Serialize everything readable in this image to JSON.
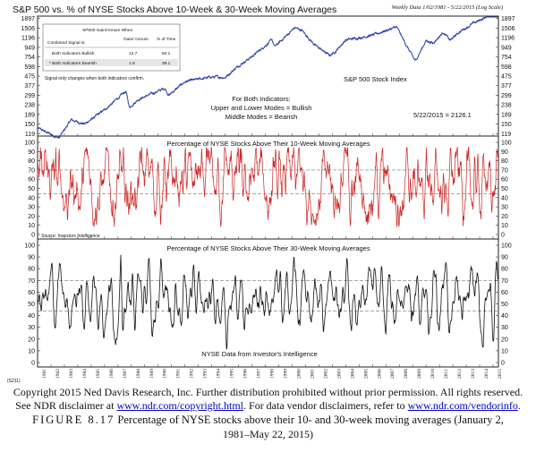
{
  "header": {
    "title": "S&P 500 vs. % of NYSE Stocks Above 10-Week & 30-Week Moving Averages",
    "subtitle": "Weekly Data 1/02/1981 - 5/22/2015 (Log Scale)"
  },
  "top_panel": {
    "series_label": "S&P 500 Stock Index",
    "modes_line1": "For Both Indicators:",
    "modes_line2": "Upper and Lower Modes = Bullish",
    "modes_line3": "Middle Modes = Bearish",
    "last_value": "5/22/2015 = 2126.1",
    "note": "Signal only changes when both indicators confirm.",
    "table": {
      "headers": [
        "SP500 Gain/Annum When",
        "",
        "Gain/ Annum",
        "% of Time"
      ],
      "header_caption": "SP500 Gain/Annum When",
      "col1": "Combined Signal is:",
      "col2": "Gain/ Annum",
      "col3": "% of Time",
      "rows": [
        {
          "label": "Both Indicators Bullish",
          "gain": "12.7",
          "time": "60.1"
        },
        {
          "label": "* Both Indicators Bearish",
          "gain": "1.8",
          "time": "39.1"
        }
      ]
    }
  },
  "mid_panel": {
    "title": "Percentage of NYSE Stocks Above Their 10-Week Moving Averages",
    "source": "Source: Investors Intelligence"
  },
  "bot_panel": {
    "title": "Percentage of NYSE Stocks Above Their 30-Week Moving Averages",
    "note": "NYSE Data from Investor's Intelligence"
  },
  "footer_code": "(S211)",
  "caption": {
    "line1": "Copyright 2015 Ned Davis Research, Inc. Further distribution prohibited without prior permission. All rights reserved.",
    "line2a": "See NDR disclaimer at",
    "link1": "www.ndr.com/copyright.html",
    "line2b": ". For data vendor disclaimers, refer to",
    "link2": "www.ndr.com/vendorinfo",
    "line2c": ".",
    "figure_label": "FIGURE 8.17",
    "line3": "Percentage of NYSE stocks above their 10- and 30-week moving averages (January 2,",
    "line4": "1981–May 22, 2015)"
  },
  "colors": {
    "sp500": "#2b3fa8",
    "pct10": "#cc2222",
    "pct30": "#111111",
    "frame": "#222222",
    "grid": "#bbbbbb"
  },
  "chart_data": [
    {
      "type": "line",
      "name": "S&P 500 Stock Index",
      "scale": "log",
      "ylim": [
        119,
        1897
      ],
      "yticks": [
        119,
        150,
        189,
        238,
        299,
        377,
        475,
        598,
        754,
        949,
        1196,
        1506,
        1897
      ],
      "xlim": [
        1981.0,
        2015.4
      ],
      "anchors": [
        [
          1981.0,
          136
        ],
        [
          1982.6,
          107
        ],
        [
          1983.5,
          166
        ],
        [
          1984.5,
          150
        ],
        [
          1985.0,
          167
        ],
        [
          1986.0,
          211
        ],
        [
          1987.6,
          330
        ],
        [
          1987.85,
          224
        ],
        [
          1988.5,
          270
        ],
        [
          1990.5,
          355
        ],
        [
          1990.8,
          300
        ],
        [
          1992.0,
          415
        ],
        [
          1994.0,
          465
        ],
        [
          1995.0,
          460
        ],
        [
          1996.0,
          610
        ],
        [
          1997.0,
          760
        ],
        [
          1998.5,
          1130
        ],
        [
          1998.7,
          960
        ],
        [
          2000.2,
          1520
        ],
        [
          2000.7,
          1440
        ],
        [
          2001.7,
          1000
        ],
        [
          2002.8,
          780
        ],
        [
          2003.2,
          850
        ],
        [
          2004.0,
          1130
        ],
        [
          2006.0,
          1270
        ],
        [
          2007.8,
          1550
        ],
        [
          2008.7,
          900
        ],
        [
          2009.2,
          680
        ],
        [
          2010.0,
          1120
        ],
        [
          2010.5,
          1050
        ],
        [
          2011.3,
          1360
        ],
        [
          2011.8,
          1120
        ],
        [
          2012.5,
          1380
        ],
        [
          2013.5,
          1680
        ],
        [
          2014.5,
          1970
        ],
        [
          2015.38,
          2126
        ]
      ],
      "last_value": 2126.1
    },
    {
      "type": "line",
      "name": "Percentage of NYSE Stocks Above Their 10-Week Moving Averages",
      "ylim": [
        0,
        100
      ],
      "yticks": [
        0,
        10,
        20,
        30,
        40,
        50,
        60,
        70,
        80,
        90,
        100
      ],
      "reference_lines": [
        44,
        70
      ],
      "range_approx": [
        8,
        95
      ],
      "xlim": [
        1981.0,
        2015.4
      ]
    },
    {
      "type": "line",
      "name": "Percentage of NYSE Stocks Above Their 30-Week Moving Averages",
      "ylim": [
        0,
        100
      ],
      "yticks": [
        0,
        10,
        20,
        30,
        40,
        50,
        60,
        70,
        80,
        90,
        100
      ],
      "reference_lines": [
        44,
        70
      ],
      "range_approx": [
        4,
        93
      ],
      "xlim": [
        1981.0,
        2015.4
      ],
      "xticks": [
        "1981",
        "1982",
        "1983",
        "1984",
        "1985",
        "1986",
        "1987",
        "1988",
        "1989",
        "1990",
        "1991",
        "1992",
        "1993",
        "1994",
        "1995",
        "1996",
        "1997",
        "1998",
        "1999",
        "2000",
        "2001",
        "2002",
        "2003",
        "2004",
        "2005",
        "2006",
        "2007",
        "2008",
        "2009",
        "2010",
        "2011",
        "2012",
        "2013",
        "2014",
        "2015"
      ]
    }
  ]
}
